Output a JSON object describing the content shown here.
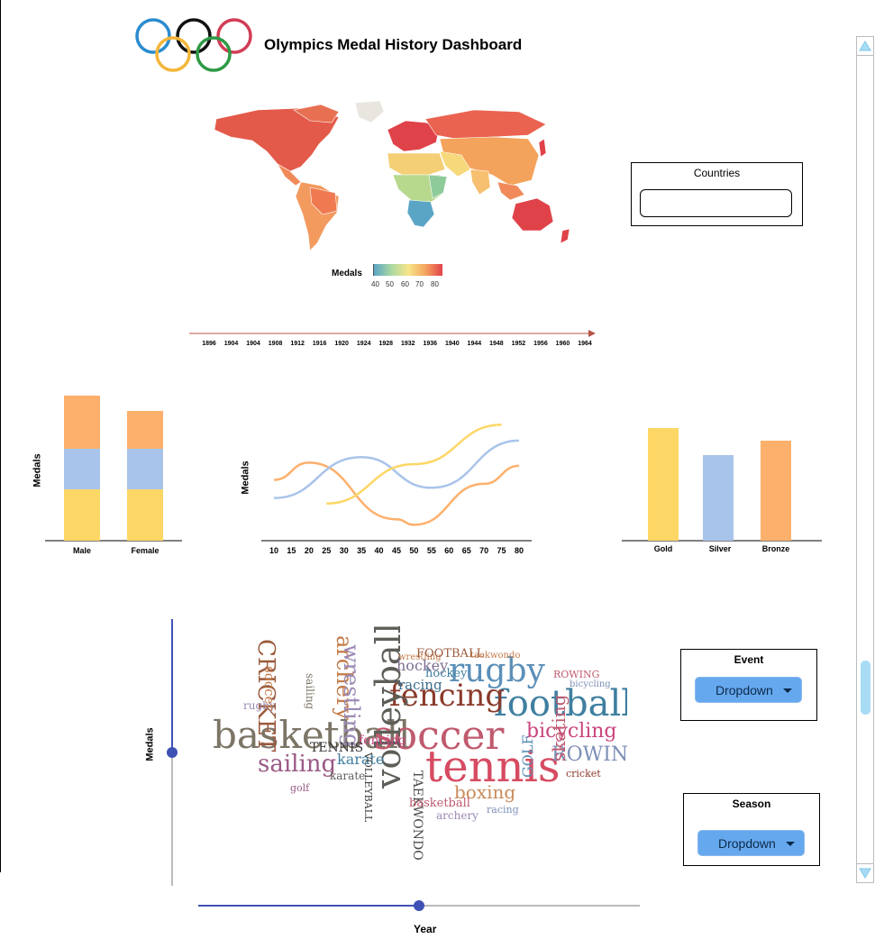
{
  "header": {
    "title": "Olympics Medal History Dashboard"
  },
  "map": {
    "legend_label": "Medals",
    "legend_ticks": [
      "40",
      "50",
      "60",
      "70",
      "80"
    ],
    "colors": {
      "low": "#5aa5c6",
      "mid": "#f7e58a",
      "high": "#e0424a"
    }
  },
  "countries": {
    "label": "Countries",
    "value": "",
    "placeholder": ""
  },
  "timeline": {
    "years": [
      "1896",
      "1904",
      "1904",
      "1908",
      "1912",
      "1916",
      "1920",
      "1924",
      "1928",
      "1932",
      "1936",
      "1940",
      "1944",
      "1948",
      "1952",
      "1956",
      "1960",
      "1964"
    ]
  },
  "colors": {
    "gold": "#fdd766",
    "silver": "#a9c4ea",
    "bronze": "#fdb06c",
    "accent": "#3f51b5"
  },
  "chart_data": [
    {
      "type": "bar",
      "stacked": true,
      "ylabel": "Medals",
      "categories": [
        "Male",
        "Female"
      ],
      "series": [
        {
          "values": [
            57,
            57
          ],
          "color": "#fdd766"
        },
        {
          "values": [
            45,
            45
          ],
          "color": "#a9c4ea"
        },
        {
          "values": [
            59,
            42
          ],
          "color": "#fdb06c"
        }
      ]
    },
    {
      "type": "line",
      "ylabel": "Medals",
      "x": [
        10,
        15,
        20,
        25,
        30,
        35,
        40,
        45,
        50,
        55,
        60,
        65,
        70,
        75,
        80
      ],
      "series": [
        {
          "color": "#fdb06c",
          "x": [
            10,
            20,
            45,
            50,
            70,
            80
          ],
          "y": [
            60,
            82,
            10,
            3,
            55,
            78
          ]
        },
        {
          "color": "#a9c4ea",
          "x": [
            10,
            35,
            55,
            80
          ],
          "y": [
            37,
            89,
            50,
            110
          ]
        },
        {
          "color": "#fdd766",
          "x": [
            25,
            50,
            75
          ],
          "y": [
            30,
            80,
            130
          ]
        }
      ]
    },
    {
      "type": "bar",
      "categories": [
        "Gold",
        "Silver",
        "Bronze"
      ],
      "values": [
        125,
        95,
        111
      ],
      "colors": [
        "#fdd766",
        "#a9c4ea",
        "#fdb06c"
      ]
    }
  ],
  "wordcloud": {
    "ylabel": "Medals",
    "words": [
      {
        "t": "basketball",
        "c": "#7c7566"
      },
      {
        "t": "soccer",
        "c": "#c05a6e"
      },
      {
        "t": "football",
        "c": "#3f7fa0"
      },
      {
        "t": "tennis",
        "c": "#d64b61"
      },
      {
        "t": "fencing",
        "c": "#8a3a2a"
      },
      {
        "t": "volleyball",
        "c": "#5d5e58"
      },
      {
        "t": "rugby",
        "c": "#5b8fb8"
      },
      {
        "t": "sailing",
        "c": "#9a5a86"
      },
      {
        "t": "bicycling",
        "c": "#c9457e"
      },
      {
        "t": "CRICKET",
        "c": "#9b5a3c"
      },
      {
        "t": "archery",
        "c": "#c47c4a"
      },
      {
        "t": "wrestling",
        "c": "#9a8ab4"
      },
      {
        "t": "ROWING",
        "c": "#7d8fb7"
      },
      {
        "t": "boxing",
        "c": "#c98a5a"
      },
      {
        "t": "karate",
        "c": "#3f7fa0"
      },
      {
        "t": "hockey",
        "c": "#7d6e90"
      },
      {
        "t": "racing",
        "c": "#3a6e8e"
      },
      {
        "t": "TAEKWONDO",
        "c": "#4c4c4c"
      },
      {
        "t": "GOLF",
        "c": "#5b8fb8"
      },
      {
        "t": "skating",
        "c": "#c05a6e"
      },
      {
        "t": "basketball",
        "c": "#c05a6e"
      },
      {
        "t": "archery",
        "c": "#9a8ab4"
      },
      {
        "t": "racing",
        "c": "#7d8fb7"
      },
      {
        "t": "cricket",
        "c": "#8a3a2a"
      },
      {
        "t": "rugby",
        "c": "#9a8ab4"
      },
      {
        "t": "soccer",
        "c": "#c47c4a"
      },
      {
        "t": "sailing",
        "c": "#7c7566"
      },
      {
        "t": "fencing",
        "c": "#c9457e"
      },
      {
        "t": "TENNIS",
        "c": "#3a3a3a"
      },
      {
        "t": "VOLLEYBALL",
        "c": "#3a3a3a"
      },
      {
        "t": "wrestling",
        "c": "#c47c4a"
      },
      {
        "t": "FOOTBALL",
        "c": "#9b5a3c"
      },
      {
        "t": "taekwondo",
        "c": "#c47c4a"
      },
      {
        "t": "ROWING",
        "c": "#c05a6e"
      },
      {
        "t": "bicycling",
        "c": "#7d8fb7"
      },
      {
        "t": "golf",
        "c": "#9a5a86"
      },
      {
        "t": "karate",
        "c": "#5d5e58"
      },
      {
        "t": "hockey",
        "c": "#3f7fa0"
      }
    ]
  },
  "event": {
    "title": "Event",
    "dropdown_label": "Dropdown"
  },
  "season": {
    "title": "Season",
    "dropdown_label": "Dropdown"
  },
  "year_slider": {
    "label": "Year",
    "value": 0.5
  },
  "medals_slider": {
    "value": 0.5
  }
}
